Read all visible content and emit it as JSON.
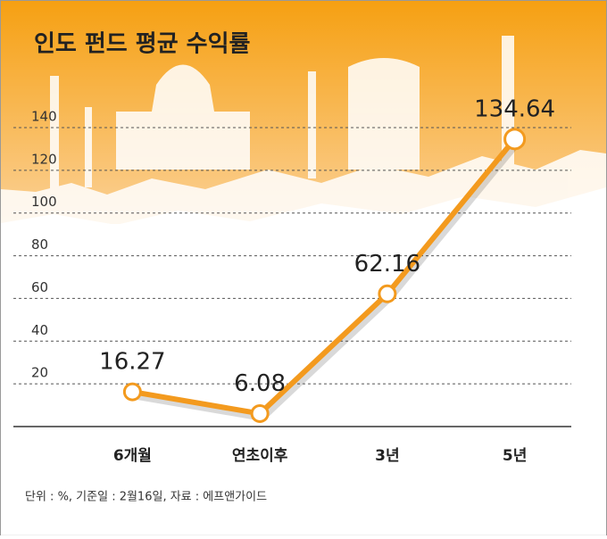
{
  "chart_data": {
    "type": "line",
    "title": "인도 펀드 평균 수익률",
    "categories": [
      "6개월",
      "연초이후",
      "3년",
      "5년"
    ],
    "values": [
      16.27,
      6.08,
      62.16,
      134.64
    ],
    "color": "#f39a1e",
    "ylim": [
      0,
      140
    ],
    "yticks": [
      20,
      40,
      60,
      80,
      100,
      120,
      140
    ],
    "grid": true,
    "note": "단위 : %, 기준일 : 2월16일, 자료 : 에프앤가이드"
  }
}
